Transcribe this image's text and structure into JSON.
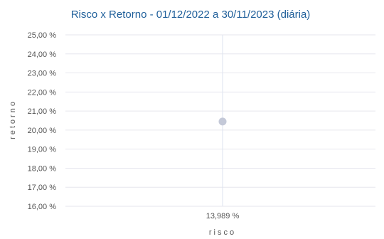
{
  "chart_data": {
    "type": "scatter",
    "title": "Risco x Retorno - 01/12/2022 a 30/11/2023 (diária)",
    "xlabel": "risco",
    "ylabel": "retorno",
    "ylim": [
      16,
      25
    ],
    "y_ticks": [
      "16,00 %",
      "17,00 %",
      "18,00 %",
      "19,00 %",
      "20,00 %",
      "21,00 %",
      "22,00 %",
      "23,00 %",
      "24,00 %",
      "25,00 %"
    ],
    "x_ticks": [
      "13,989 %"
    ],
    "points": [
      {
        "x": 13.989,
        "y": 20.45
      }
    ],
    "colors": {
      "point": "#c4c9d8",
      "title": "#1f5f9a"
    },
    "grid": true
  }
}
